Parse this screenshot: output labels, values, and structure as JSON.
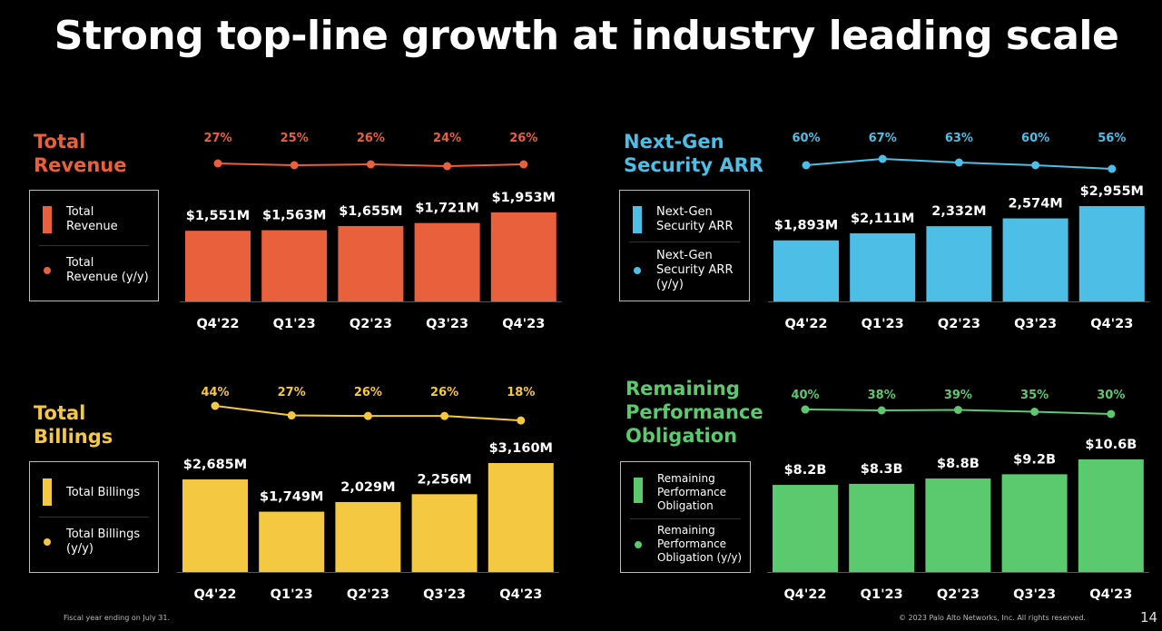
{
  "title": "Strong top-line growth at industry leading scale",
  "footer": {
    "note": "Fiscal year ending on July 31.",
    "copyright": "© 2023 Palo Alto Networks, Inc. All rights reserved.",
    "page": "14"
  },
  "chart_data": [
    {
      "type": "bar+line",
      "title": "Total Revenue",
      "color": "#E8603C",
      "categories": [
        "Q4'22",
        "Q1'23",
        "Q2'23",
        "Q3'23",
        "Q4'23"
      ],
      "series": [
        {
          "name": "Total Revenue",
          "type": "bar",
          "values": [
            1551,
            1563,
            1655,
            1721,
            1953
          ],
          "labels": [
            "$1,551M",
            "$1,563M",
            "$1,655M",
            "$1,721M",
            "$1,953M"
          ]
        },
        {
          "name": "Total Revenue (y/y)",
          "type": "line",
          "values": [
            27,
            25,
            26,
            24,
            26
          ],
          "labels": [
            "27%",
            "25%",
            "26%",
            "24%",
            "26%"
          ]
        }
      ]
    },
    {
      "type": "bar+line",
      "title": "Next-Gen Security ARR",
      "color": "#4DBEE6",
      "categories": [
        "Q4'22",
        "Q1'23",
        "Q2'23",
        "Q3'23",
        "Q4'23"
      ],
      "series": [
        {
          "name": "Next-Gen Security ARR",
          "type": "bar",
          "values": [
            1893,
            2111,
            2332,
            2574,
            2955
          ],
          "labels": [
            "$1,893M",
            "$2,111M",
            "2,332M",
            "2,574M",
            "$2,955M"
          ]
        },
        {
          "name": "Next-Gen Security ARR (y/y)",
          "type": "line",
          "values": [
            60,
            67,
            63,
            60,
            56
          ],
          "labels": [
            "60%",
            "67%",
            "63%",
            "60%",
            "56%"
          ]
        }
      ]
    },
    {
      "type": "bar+line",
      "title": "Total Billings",
      "color": "#F5C842",
      "categories": [
        "Q4'22",
        "Q1'23",
        "Q2'23",
        "Q3'23",
        "Q4'23"
      ],
      "series": [
        {
          "name": "Total Billings",
          "type": "bar",
          "values": [
            2685,
            1749,
            2029,
            2256,
            3160
          ],
          "labels": [
            "$2,685M",
            "$1,749M",
            "2,029M",
            "2,256M",
            "$3,160M"
          ]
        },
        {
          "name": "Total Billings (y/y)",
          "type": "line",
          "values": [
            44,
            27,
            26,
            26,
            18
          ],
          "labels": [
            "44%",
            "27%",
            "26%",
            "26%",
            "18%"
          ]
        }
      ]
    },
    {
      "type": "bar+line",
      "title": "Remaining Performance Obligation",
      "color": "#5BC96E",
      "categories": [
        "Q4'22",
        "Q1'23",
        "Q2'23",
        "Q3'23",
        "Q4'23"
      ],
      "series": [
        {
          "name": "Remaining Performance Obligation",
          "type": "bar",
          "values": [
            8.2,
            8.3,
            8.8,
            9.2,
            10.6
          ],
          "labels": [
            "$8.2B",
            "$8.3B",
            "$8.8B",
            "$9.2B",
            "$10.6B"
          ]
        },
        {
          "name": "Remaining Performance Obligation (y/y)",
          "type": "line",
          "values": [
            40,
            38,
            39,
            35,
            30
          ],
          "labels": [
            "40%",
            "38%",
            "39%",
            "35%",
            "30%"
          ]
        }
      ]
    }
  ],
  "panels": [
    {
      "title": "Total\nRevenue",
      "legend_bar": "Total\nRevenue",
      "legend_line": "Total\nRevenue (y/y)"
    },
    {
      "title": "Next-Gen\nSecurity ARR",
      "legend_bar": "Next-Gen\nSecurity ARR",
      "legend_line": "Next-Gen\nSecurity ARR\n(y/y)"
    },
    {
      "title": "Total\nBillings",
      "legend_bar": "Total Billings",
      "legend_line": "Total Billings\n(y/y)"
    },
    {
      "title": "Remaining\nPerformance\nObligation",
      "legend_bar": "Remaining\nPerformance\nObligation",
      "legend_line": "Remaining\nPerformance\nObligation (y/y)"
    }
  ]
}
